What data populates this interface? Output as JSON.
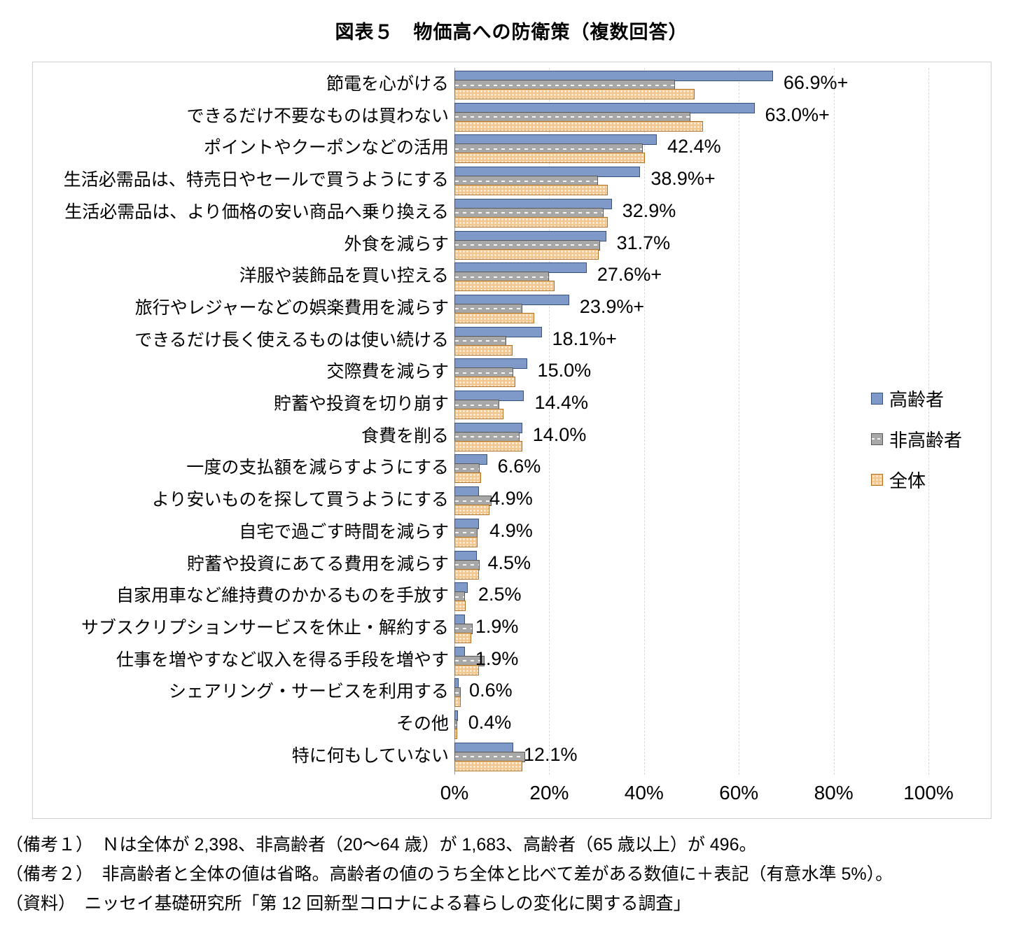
{
  "title": "図表５　物価高への防衛策（複数回答）",
  "chart_data": {
    "type": "bar",
    "orientation": "horizontal",
    "title": "図表５　物価高への防衛策（複数回答）",
    "xlabel": "",
    "ylabel": "",
    "xlim": [
      0,
      100
    ],
    "grid": true,
    "legend_position": "right",
    "x_ticks": [
      "0%",
      "20%",
      "40%",
      "60%",
      "80%",
      "100%"
    ],
    "categories": [
      "節電を心がける",
      "できるだけ不要なものは買わない",
      "ポイントやクーポンなどの活用",
      "生活必需品は、特売日やセールで買うようにする",
      "生活必需品は、より価格の安い商品へ乗り換える",
      "外食を減らす",
      "洋服や装飾品を買い控える",
      "旅行やレジャーなどの娯楽費用を減らす",
      "できるだけ長く使えるものは使い続ける",
      "交際費を減らす",
      "貯蓄や投資を切り崩す",
      "食費を削る",
      "一度の支払額を減らすようにする",
      "より安いものを探して買うようにする",
      "自宅で過ごす時間を減らす",
      "貯蓄や投資にあてる費用を減らす",
      "自家用車など維持費のかかるものを手放す",
      "サブスクリプションサービスを休止・解約する",
      "仕事を増やすなど収入を得る手段を増やす",
      "シェアリング・サービスを利用する",
      "その他",
      "特に何もしていない"
    ],
    "series": [
      {
        "name": "高齢者",
        "key": "elderly",
        "color": "#7f9ac9",
        "border": "#35517f",
        "pattern": "solid",
        "values": [
          66.9,
          63.0,
          42.4,
          38.9,
          32.9,
          31.7,
          27.6,
          23.9,
          18.1,
          15.0,
          14.4,
          14.0,
          6.6,
          4.9,
          4.9,
          4.5,
          2.5,
          1.9,
          1.9,
          0.6,
          0.4,
          12.1
        ]
      },
      {
        "name": "非高齢者",
        "key": "non-elderly",
        "color": "#a8a8a8",
        "border": "#595959",
        "pattern": "dash",
        "values": [
          46.2,
          49.5,
          39.4,
          30.0,
          31.2,
          30.4,
          19.7,
          14.1,
          10.6,
          12.1,
          9.1,
          13.5,
          5.0,
          7.5,
          4.6,
          5.0,
          1.9,
          3.5,
          6.0,
          1.0,
          0.3,
          14.6
        ]
      },
      {
        "name": "全体",
        "key": "total",
        "color": "#f2c790",
        "border": "#b0701f",
        "pattern": "dots",
        "values": [
          50.3,
          52.2,
          39.9,
          32.1,
          32.1,
          30.1,
          20.9,
          16.5,
          11.9,
          12.6,
          10.0,
          14.0,
          5.3,
          7.1,
          4.6,
          4.9,
          2.1,
          3.2,
          4.9,
          1.0,
          0.3,
          14.0
        ]
      }
    ],
    "value_labels": [
      "66.9%+",
      "63.0%+",
      "42.4%",
      "38.9%+",
      "32.9%",
      "31.7%",
      "27.6%+",
      "23.9%+",
      "18.1%+",
      "15.0%",
      "14.4%",
      "14.0%",
      "6.6%",
      "4.9%",
      "4.9%",
      "4.5%",
      "2.5%",
      "1.9%",
      "1.9%",
      "0.6%",
      "0.4%",
      "12.1%"
    ]
  },
  "notes": [
    "（備考１）　Ｎは全体が 2,398、非高齢者（20～64 歳）が 1,683、高齢者（65 歳以上）が 496。",
    "（備考２）　非高齢者と全体の値は省略。高齢者の値のうち全体と比べて差がある数値に＋表記（有意水準 5%）。",
    "（資料）　ニッセイ基礎研究所「第 12 回新型コロナによる暮らしの変化に関する調査」"
  ]
}
